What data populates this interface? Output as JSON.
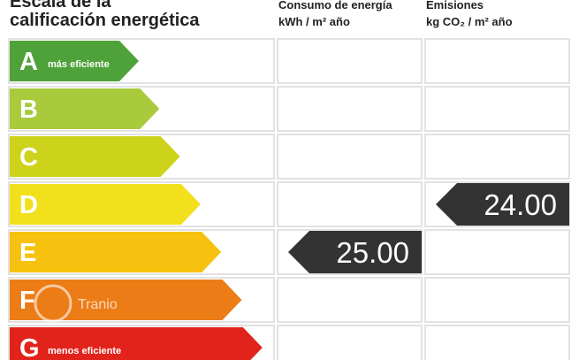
{
  "title_lines": [
    "Escala de la",
    "calificación energética"
  ],
  "columns": [
    {
      "title": "Consumo de energía",
      "unit": "kWh / m² año"
    },
    {
      "title": "Emisiones",
      "unit": "kg CO₂ / m² año"
    }
  ],
  "rows": [
    {
      "letter": "A",
      "note": "más eficiente",
      "color": "#4fa23a"
    },
    {
      "letter": "B",
      "color": "#a9ca3b"
    },
    {
      "letter": "C",
      "color": "#cdd31b"
    },
    {
      "letter": "D",
      "color": "#f3e01d",
      "emissions": "24.00"
    },
    {
      "letter": "E",
      "color": "#f6c20f",
      "consumption": "25.00"
    },
    {
      "letter": "F",
      "color": "#ec7c16"
    },
    {
      "letter": "G",
      "note": "menos eficiente",
      "color": "#e1231b"
    }
  ],
  "watermark": "Tranio"
}
